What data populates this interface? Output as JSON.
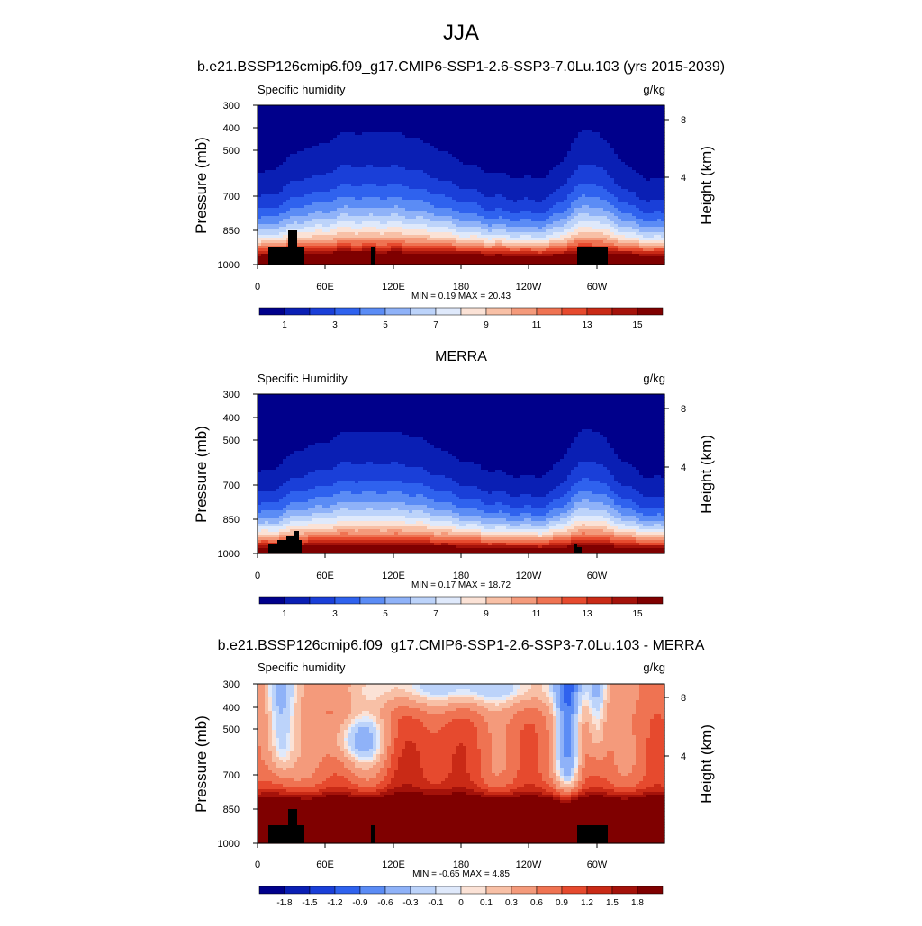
{
  "figure": {
    "title": "JJA"
  },
  "palette": [
    "#00008b",
    "#0a1fb4",
    "#1a3fd8",
    "#2f62ee",
    "#5b8cf5",
    "#8fb2f8",
    "#bcd3fa",
    "#dfe9fb",
    "#fbe2d6",
    "#f8c0a6",
    "#f49a7b",
    "#ef7352",
    "#e64a2e",
    "#c92a16",
    "#a4120a",
    "#7f0000"
  ],
  "chart_data": [
    {
      "type": "heatmap",
      "title": "b.e21.BSSP126cmip6.f09_g17.CMIP6-SSP1-2.6-SSP3-7.0Lu.103 (yrs 2015-2039)",
      "left_label": "Specific humidity",
      "right_label": "g/kg",
      "ylabel": "Pressure (mb)",
      "y2label": "Height (km)",
      "xticks": [
        "0",
        "60E",
        "120E",
        "180",
        "120W",
        "60W"
      ],
      "xlim": [
        0,
        360
      ],
      "yticks": [
        "300",
        "400",
        "500",
        "700",
        "850",
        "1000"
      ],
      "ylim": [
        1000,
        300
      ],
      "y2ticks": [
        "8",
        "4"
      ],
      "stats": "MIN =   0.19  MAX =  20.43",
      "min": 0.19,
      "max": 20.43,
      "colorbar_labels": [
        "1",
        "3",
        "5",
        "7",
        "9",
        "11",
        "13",
        "15"
      ],
      "field_kind": "absolute"
    },
    {
      "type": "heatmap",
      "title": "MERRA",
      "left_label": "Specific Humidity",
      "right_label": "g/kg",
      "ylabel": "Pressure (mb)",
      "y2label": "Height (km)",
      "xticks": [
        "0",
        "60E",
        "120E",
        "180",
        "120W",
        "60W"
      ],
      "xlim": [
        0,
        360
      ],
      "yticks": [
        "300",
        "400",
        "500",
        "700",
        "850",
        "1000"
      ],
      "ylim": [
        1000,
        300
      ],
      "y2ticks": [
        "8",
        "4"
      ],
      "stats": "MIN =   0.17  MAX =  18.72",
      "min": 0.17,
      "max": 18.72,
      "colorbar_labels": [
        "1",
        "3",
        "5",
        "7",
        "9",
        "11",
        "13",
        "15"
      ],
      "field_kind": "absolute"
    },
    {
      "type": "heatmap",
      "title": "b.e21.BSSP126cmip6.f09_g17.CMIP6-SSP1-2.6-SSP3-7.0Lu.103 - MERRA",
      "left_label": "Specific humidity",
      "right_label": "g/kg",
      "ylabel": "Pressure (mb)",
      "y2label": "Height (km)",
      "xticks": [
        "0",
        "60E",
        "120E",
        "180",
        "120W",
        "60W"
      ],
      "xlim": [
        0,
        360
      ],
      "yticks": [
        "300",
        "400",
        "500",
        "700",
        "850",
        "1000"
      ],
      "ylim": [
        1000,
        300
      ],
      "y2ticks": [
        "8",
        "4"
      ],
      "stats": "MIN =  -0.65  MAX =   4.85",
      "min": -0.65,
      "max": 4.85,
      "colorbar_labels": [
        "-1.8",
        "-1.5",
        "-1.2",
        "-0.9",
        "-0.6",
        "-0.3",
        "-0.1",
        "0",
        "0.1",
        "0.3",
        "0.6",
        "0.9",
        "1.2",
        "1.5",
        "1.8"
      ],
      "field_kind": "difference"
    }
  ]
}
